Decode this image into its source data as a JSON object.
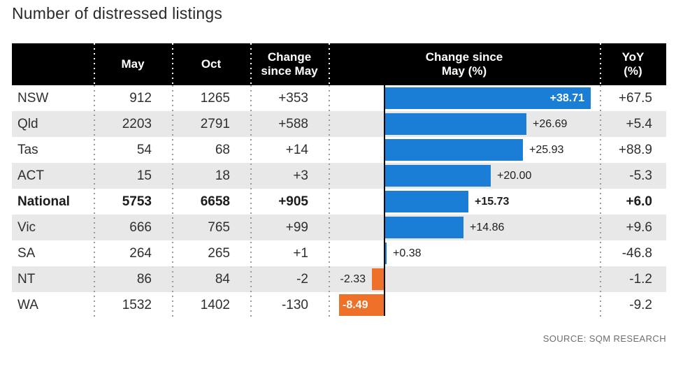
{
  "title": "Number of distressed listings",
  "source": "SOURCE: SQM RESEARCH",
  "colors": {
    "positive_bar": "#1a7ed6",
    "negative_bar": "#ee7029",
    "header_bg": "#000000",
    "header_text": "#ffffff",
    "row_stripe": "#e8e8e8",
    "axis_line": "#0a0a0a",
    "body_text": "#2f2f2f",
    "source_text": "#6e6e6e"
  },
  "table": {
    "columns": [
      "",
      "May",
      "Oct",
      "Change\nsince May",
      "Change since\nMay (%)",
      "YoY\n(%)"
    ],
    "rows": [
      {
        "label": "NSW",
        "may": "912",
        "oct": "1265",
        "change": "+353",
        "pct_label": "+38.71",
        "yoy": "+67.5",
        "bold": false,
        "label_placement": "inside-right"
      },
      {
        "label": "Qld",
        "may": "2203",
        "oct": "2791",
        "change": "+588",
        "pct_label": "+26.69",
        "yoy": "+5.4",
        "bold": false,
        "label_placement": "outside-right"
      },
      {
        "label": "Tas",
        "may": "54",
        "oct": "68",
        "change": "+14",
        "pct_label": "+25.93",
        "yoy": "+88.9",
        "bold": false,
        "label_placement": "outside-right"
      },
      {
        "label": "ACT",
        "may": "15",
        "oct": "18",
        "change": "+3",
        "pct_label": "+20.00",
        "yoy": "-5.3",
        "bold": false,
        "label_placement": "outside-right"
      },
      {
        "label": "National",
        "may": "5753",
        "oct": "6658",
        "change": "+905",
        "pct_label": "+15.73",
        "yoy": "+6.0",
        "bold": true,
        "label_placement": "outside-right"
      },
      {
        "label": "Vic",
        "may": "666",
        "oct": "765",
        "change": "+99",
        "pct_label": "+14.86",
        "yoy": "+9.6",
        "bold": false,
        "label_placement": "outside-right"
      },
      {
        "label": "SA",
        "may": "264",
        "oct": "265",
        "change": "+1",
        "pct_label": "+0.38",
        "yoy": "-46.8",
        "bold": false,
        "label_placement": "outside-right"
      },
      {
        "label": "NT",
        "may": "86",
        "oct": "84",
        "change": "-2",
        "pct_label": "-2.33",
        "yoy": "-1.2",
        "bold": false,
        "label_placement": "outside-left"
      },
      {
        "label": "WA",
        "may": "1532",
        "oct": "1402",
        "change": "-130",
        "pct_label": "-8.49",
        "yoy": "-9.2",
        "bold": false,
        "label_placement": "inside-left"
      }
    ]
  },
  "chart_data": {
    "type": "bar",
    "orientation": "horizontal",
    "title": "Number of distressed listings",
    "categories": [
      "NSW",
      "Qld",
      "Tas",
      "ACT",
      "National",
      "Vic",
      "SA",
      "NT",
      "WA"
    ],
    "series": [
      {
        "name": "May",
        "values": [
          912,
          2203,
          54,
          15,
          5753,
          666,
          264,
          86,
          1532
        ]
      },
      {
        "name": "Oct",
        "values": [
          1265,
          2791,
          68,
          18,
          6658,
          765,
          265,
          84,
          1402
        ]
      },
      {
        "name": "Change since May",
        "values": [
          353,
          588,
          14,
          3,
          905,
          99,
          1,
          -2,
          -130
        ]
      },
      {
        "name": "Change since May (%)",
        "values": [
          38.71,
          26.69,
          25.93,
          20.0,
          15.73,
          14.86,
          0.38,
          -2.33,
          -8.49
        ]
      },
      {
        "name": "YoY (%)",
        "values": [
          67.5,
          5.4,
          88.9,
          -5.3,
          6.0,
          9.6,
          -46.8,
          -1.2,
          -9.2
        ]
      }
    ],
    "plotted_series": "Change since May (%)",
    "data_labels": [
      "+38.71",
      "+26.69",
      "+25.93",
      "+20.00",
      "+15.73",
      "+14.86",
      "+0.38",
      "-2.33",
      "-8.49"
    ],
    "xlim": [
      -10.5,
      40.5
    ],
    "grid": false,
    "legend": false,
    "annotations": {
      "emphasized_category": "National",
      "source": "SOURCE: SQM RESEARCH"
    }
  }
}
